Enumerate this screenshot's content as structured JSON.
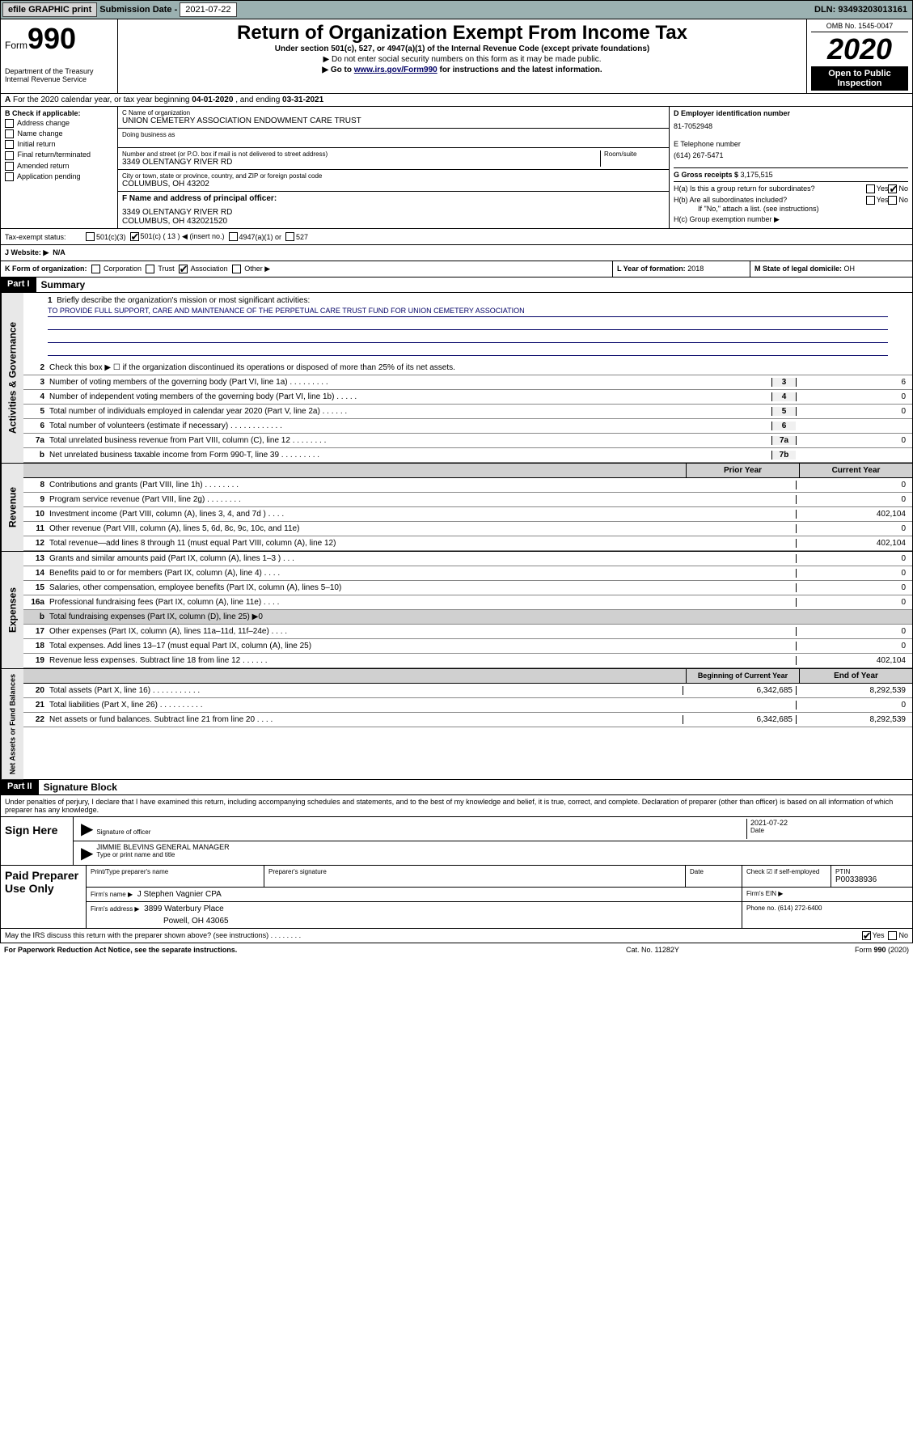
{
  "topbar": {
    "efile": "efile GRAPHIC print",
    "sublabel": "Submission Date - ",
    "subdate": "2021-07-22",
    "dln": "DLN: 93493203013161"
  },
  "header": {
    "form_word": "Form",
    "form_num": "990",
    "title": "Return of Organization Exempt From Income Tax",
    "sub1": "Under section 501(c), 527, or 4947(a)(1) of the Internal Revenue Code (except private foundations)",
    "sub2": "▶ Do not enter social security numbers on this form as it may be made public.",
    "sub3_pre": "▶ Go to ",
    "sub3_link": "www.irs.gov/Form990",
    "sub3_post": " for instructions and the latest information.",
    "omb": "OMB No. 1545-0047",
    "year": "2020",
    "open": "Open to Public Inspection",
    "dept": "Department of the Treasury\nInternal Revenue Service"
  },
  "fy": {
    "prefix": "A",
    "text": "For the 2020 calendar year, or tax year beginning ",
    "begin": "04-01-2020",
    "mid": " , and ending ",
    "end": "03-31-2021"
  },
  "col_b": {
    "label": "B Check if applicable:",
    "items": [
      "Address change",
      "Name change",
      "Initial return",
      "Final return/terminated",
      "Amended return",
      "Application pending"
    ]
  },
  "col_c": {
    "name_lab": "C Name of organization",
    "name_val": "UNION CEMETERY ASSOCIATION ENDOWMENT CARE TRUST",
    "dba_lab": "Doing business as",
    "dba_val": "",
    "addr_lab": "Number and street (or P.O. box if mail is not delivered to street address)",
    "addr_room": "Room/suite",
    "addr_val": "3349 OLENTANGY RIVER RD",
    "city_lab": "City or town, state or province, country, and ZIP or foreign postal code",
    "city_val": "COLUMBUS, OH  43202",
    "officer_lab": "F Name and address of principal officer:",
    "officer_addr1": "3349 OLENTANGY RIVER RD",
    "officer_addr2": "COLUMBUS, OH  432021520"
  },
  "col_d": {
    "ein_lab": "D Employer identification number",
    "ein_val": "81-7052948",
    "tel_lab": "E Telephone number",
    "tel_val": "(614) 267-5471",
    "gross_lab": "G Gross receipts $ ",
    "gross_val": "3,175,515"
  },
  "col_h": {
    "ha_lab": "H(a)  Is this a group return for subordinates?",
    "hb_lab": "H(b)  Are all subordinates included?",
    "hb_note": "If \"No,\" attach a list. (see instructions)",
    "hc_lab": "H(c)  Group exemption number ▶"
  },
  "taxstatus": {
    "label": "Tax-exempt status:",
    "opt1": "501(c)(3)",
    "opt2": "501(c) ( 13 ) ◀ (insert no.)",
    "opt3": "4947(a)(1) or",
    "opt4": "527"
  },
  "website": {
    "label": "J   Website: ▶",
    "value": "N/A"
  },
  "k": {
    "label": "K Form of organization:",
    "opts": [
      "Corporation",
      "Trust",
      "Association",
      "Other ▶"
    ]
  },
  "l": {
    "label": "L Year of formation: ",
    "value": "2018"
  },
  "m": {
    "label": "M State of legal domicile: ",
    "value": "OH"
  },
  "part1": {
    "hdr": "Part I",
    "title": "Summary"
  },
  "mission": {
    "num": "1",
    "label": "Briefly describe the organization's mission or most significant activities:",
    "text": "TO PROVIDE FULL SUPPORT, CARE AND MAINTENANCE OF THE PERPETUAL CARE TRUST FUND FOR UNION CEMETERY ASSOCIATION"
  },
  "gov_lines": [
    {
      "n": "2",
      "t": "Check this box ▶ ☐  if the organization discontinued its operations or disposed of more than 25% of its net assets."
    },
    {
      "n": "3",
      "t": "Number of voting members of the governing body (Part VI, line 1a)  .    .    .    .    .    .    .    .    .",
      "box": "3",
      "v": "6"
    },
    {
      "n": "4",
      "t": "Number of independent voting members of the governing body (Part VI, line 1b)  .    .    .    .    .",
      "box": "4",
      "v": "0"
    },
    {
      "n": "5",
      "t": "Total number of individuals employed in calendar year 2020 (Part V, line 2a)  .    .    .    .    .    .",
      "box": "5",
      "v": "0"
    },
    {
      "n": "6",
      "t": "Total number of volunteers (estimate if necessary)  .    .    .    .    .    .    .    .    .    .    .    .",
      "box": "6",
      "v": ""
    },
    {
      "n": "7a",
      "t": "Total unrelated business revenue from Part VIII, column (C), line 12  .    .    .    .    .    .    .    .",
      "box": "7a",
      "v": "0"
    },
    {
      "n": "b",
      "t": "Net unrelated business taxable income from Form 990-T, line 39  .    .    .    .    .    .    .    .    .",
      "box": "7b",
      "v": ""
    }
  ],
  "rev_hdr": {
    "c1": "Prior Year",
    "c2": "Current Year"
  },
  "rev_lines": [
    {
      "n": "8",
      "t": "Contributions and grants (Part VIII, line 1h)  .    .    .    .    .    .    .    .",
      "v1": "",
      "v2": "0"
    },
    {
      "n": "9",
      "t": "Program service revenue (Part VIII, line 2g)  .    .    .    .    .    .    .    .",
      "v1": "",
      "v2": "0"
    },
    {
      "n": "10",
      "t": "Investment income (Part VIII, column (A), lines 3, 4, and 7d )  .    .    .    .",
      "v1": "",
      "v2": "402,104"
    },
    {
      "n": "11",
      "t": "Other revenue (Part VIII, column (A), lines 5, 6d, 8c, 9c, 10c, and 11e)",
      "v1": "",
      "v2": "0"
    },
    {
      "n": "12",
      "t": "Total revenue—add lines 8 through 11 (must equal Part VIII, column (A), line 12)",
      "v1": "",
      "v2": "402,104"
    }
  ],
  "exp_lines": [
    {
      "n": "13",
      "t": "Grants and similar amounts paid (Part IX, column (A), lines 1–3 )  .    .    .",
      "v1": "",
      "v2": "0"
    },
    {
      "n": "14",
      "t": "Benefits paid to or for members (Part IX, column (A), line 4)  .    .    .    .",
      "v1": "",
      "v2": "0"
    },
    {
      "n": "15",
      "t": "Salaries, other compensation, employee benefits (Part IX, column (A), lines 5–10)",
      "v1": "",
      "v2": "0"
    },
    {
      "n": "16a",
      "t": "Professional fundraising fees (Part IX, column (A), line 11e)  .    .    .    .",
      "v1": "",
      "v2": "0"
    },
    {
      "n": "b",
      "t": "Total fundraising expenses (Part IX, column (D), line 25) ▶0",
      "shade": true
    },
    {
      "n": "17",
      "t": "Other expenses (Part IX, column (A), lines 11a–11d, 11f–24e)  .    .    .    .",
      "v1": "",
      "v2": "0"
    },
    {
      "n": "18",
      "t": "Total expenses. Add lines 13–17 (must equal Part IX, column (A), line 25)",
      "v1": "",
      "v2": "0"
    },
    {
      "n": "19",
      "t": "Revenue less expenses. Subtract line 18 from line 12  .    .    .    .    .    .",
      "v1": "",
      "v2": "402,104"
    }
  ],
  "net_hdr": {
    "c1": "Beginning of Current Year",
    "c2": "End of Year"
  },
  "net_lines": [
    {
      "n": "20",
      "t": "Total assets (Part X, line 16)  .    .    .    .    .    .    .    .    .    .    .",
      "v1": "6,342,685",
      "v2": "8,292,539"
    },
    {
      "n": "21",
      "t": "Total liabilities (Part X, line 26)  .    .    .    .    .    .    .    .    .    .",
      "v1": "",
      "v2": "0"
    },
    {
      "n": "22",
      "t": "Net assets or fund balances. Subtract line 21 from line 20  .    .    .    .",
      "v1": "6,342,685",
      "v2": "8,292,539"
    }
  ],
  "part2": {
    "hdr": "Part II",
    "title": "Signature Block"
  },
  "perjury": "Under penalties of perjury, I declare that I have examined this return, including accompanying schedules and statements, and to the best of my knowledge and belief, it is true, correct, and complete. Declaration of preparer (other than officer) is based on all information of which preparer has any knowledge.",
  "sign": {
    "here": "Sign Here",
    "sig_lab": "Signature of officer",
    "date_lab": "Date",
    "date_val": "2021-07-22",
    "name_val": "JIMMIE BLEVINS  GENERAL MANAGER",
    "name_lab": "Type or print name and title"
  },
  "paid": {
    "label": "Paid Preparer Use Only",
    "prep_name_lab": "Print/Type preparer's name",
    "prep_sig_lab": "Preparer's signature",
    "date_lab": "Date",
    "self_lab": "Check ☑ if self-employed",
    "ptin_lab": "PTIN",
    "ptin_val": "P00338936",
    "firm_name_lab": "Firm's name    ▶",
    "firm_name_val": "J Stephen Vagnier CPA",
    "firm_ein_lab": "Firm's EIN ▶",
    "firm_addr_lab": "Firm's address ▶",
    "firm_addr_val": "3899 Waterbury Place",
    "firm_addr_val2": "Powell, OH  43065",
    "phone_lab": "Phone no. ",
    "phone_val": "(614) 272-6400"
  },
  "discuss": {
    "text": "May the IRS discuss this return with the preparer shown above? (see instructions)   .    .    .    .    .    .    .    .",
    "yes": "Yes",
    "no": "No"
  },
  "footer": {
    "left": "For Paperwork Reduction Act Notice, see the separate instructions.",
    "mid": "Cat. No. 11282Y",
    "right": "Form 990 (2020)"
  },
  "side_labels": {
    "gov": "Activities & Governance",
    "rev": "Revenue",
    "exp": "Expenses",
    "net": "Net Assets or Fund Balances"
  }
}
